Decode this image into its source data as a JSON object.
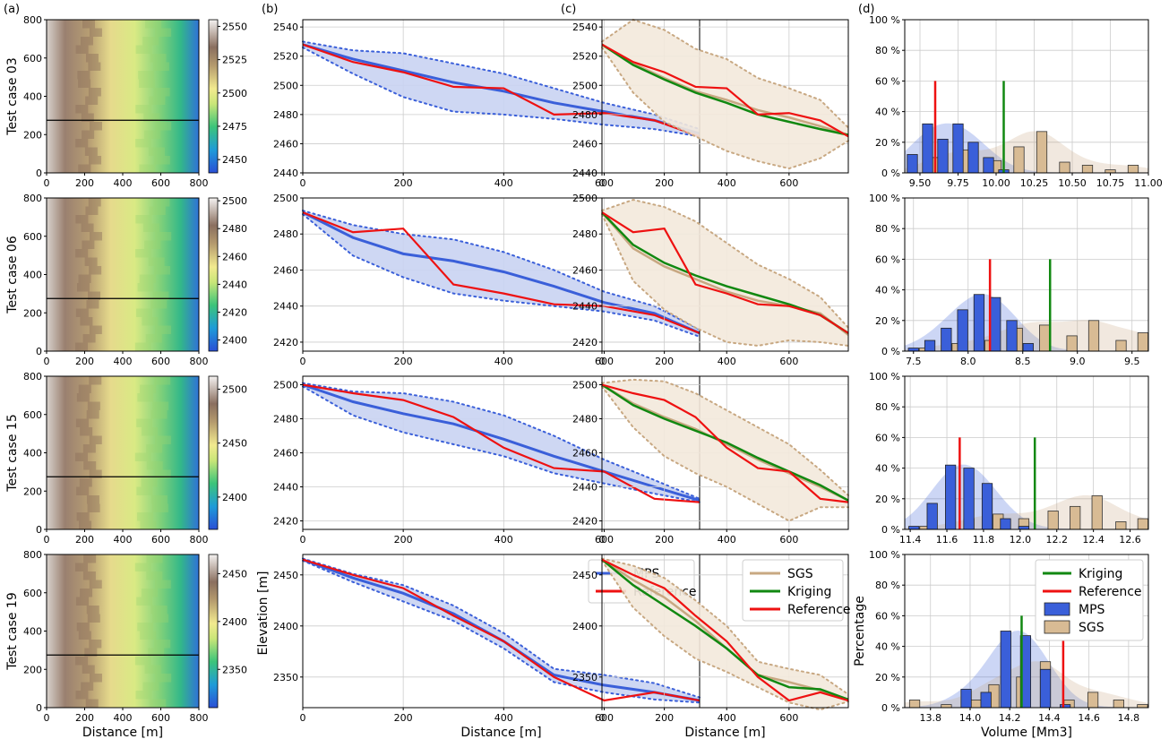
{
  "figure": {
    "panel_labels": [
      "(a)",
      "(b)",
      "(c)",
      "(d)"
    ],
    "row_labels": [
      "Test case 03",
      "Test case 06",
      "Test case 15",
      "Test case 19"
    ],
    "colors": {
      "mps": "#3a5fd9",
      "mps_fill": "#c9d3f2",
      "reference": "#ee1111",
      "kriging": "#118811",
      "sgs": "#c8a882",
      "sgs_fill": "#f3e9dc",
      "grid": "#cccccc",
      "mps_bar": "#3a5fd9",
      "sgs_bar": "#d8bb94"
    }
  },
  "chart_data": [
    {
      "id": "a",
      "type": "heatmap",
      "xlabel": "Distance [m]",
      "ylabel": "",
      "xlim": [
        0,
        800
      ],
      "ylim": [
        0,
        800
      ],
      "xticks": [
        0,
        200,
        400,
        600,
        800
      ],
      "yticks": [
        0,
        200,
        400,
        600,
        800
      ],
      "profile_line_y": 275,
      "colormap": "terrain",
      "rows": [
        {
          "row_label": "Test case 03",
          "colorbar_ticks": [
            2450,
            2475,
            2500,
            2525,
            2550
          ],
          "colorbar_range": [
            2440,
            2555
          ]
        },
        {
          "row_label": "Test case 06",
          "colorbar_ticks": [
            2400,
            2420,
            2440,
            2460,
            2480,
            2500
          ],
          "colorbar_range": [
            2392,
            2502
          ]
        },
        {
          "row_label": "Test case 15",
          "colorbar_ticks": [
            2400,
            2450,
            2500
          ],
          "colorbar_range": [
            2370,
            2512
          ]
        },
        {
          "row_label": "Test case 19",
          "colorbar_ticks": [
            2350,
            2400,
            2450
          ],
          "colorbar_range": [
            2310,
            2470
          ]
        }
      ]
    },
    {
      "id": "b",
      "type": "line",
      "xlabel": "Distance [m]",
      "ylabel": "Elevation [m]",
      "xlim": [
        0,
        790
      ],
      "xticks": [
        0,
        200,
        400,
        600
      ],
      "legend": [
        "MPS",
        "Reference"
      ],
      "legend_row": 3,
      "legend_position": "top-right",
      "rows": [
        {
          "row_label": "Test case 03",
          "ylim": [
            2440,
            2545
          ],
          "yticks": [
            2440,
            2460,
            2480,
            2500,
            2520,
            2540
          ],
          "x": [
            0,
            100,
            200,
            300,
            400,
            500,
            600,
            700,
            790
          ],
          "mps_mean": [
            2528,
            2518,
            2510,
            2502,
            2496,
            2488,
            2482,
            2476,
            2467
          ],
          "mps_upper": [
            2530,
            2524,
            2522,
            2515,
            2508,
            2498,
            2488,
            2480,
            2470
          ],
          "mps_lower": [
            2526,
            2508,
            2492,
            2482,
            2480,
            2477,
            2473,
            2470,
            2465
          ],
          "reference": [
            2528,
            2516,
            2509,
            2499,
            2498,
            2480,
            2481,
            2476,
            2465
          ]
        },
        {
          "row_label": "Test case 06",
          "ylim": [
            2415,
            2500
          ],
          "yticks": [
            2420,
            2440,
            2460,
            2480,
            2500
          ],
          "x": [
            0,
            100,
            200,
            300,
            400,
            500,
            600,
            700,
            790
          ],
          "mps_mean": [
            2492,
            2478,
            2469,
            2465,
            2459,
            2451,
            2442,
            2436,
            2425
          ],
          "mps_upper": [
            2493,
            2485,
            2480,
            2477,
            2470,
            2460,
            2448,
            2440,
            2427
          ],
          "mps_lower": [
            2491,
            2468,
            2456,
            2447,
            2443,
            2440,
            2437,
            2432,
            2423
          ],
          "reference": [
            2492,
            2481,
            2483,
            2452,
            2447,
            2441,
            2440,
            2435,
            2425
          ]
        },
        {
          "row_label": "Test case 15",
          "ylim": [
            2415,
            2505
          ],
          "yticks": [
            2420,
            2440,
            2460,
            2480,
            2500
          ],
          "x": [
            0,
            100,
            200,
            300,
            400,
            500,
            600,
            700,
            790
          ],
          "mps_mean": [
            2500,
            2490,
            2483,
            2477,
            2468,
            2458,
            2449,
            2440,
            2432
          ],
          "mps_upper": [
            2501,
            2496,
            2495,
            2490,
            2482,
            2470,
            2456,
            2444,
            2433
          ],
          "mps_lower": [
            2499,
            2482,
            2472,
            2465,
            2458,
            2448,
            2442,
            2436,
            2431
          ],
          "reference": [
            2500,
            2495,
            2491,
            2481,
            2463,
            2451,
            2449,
            2433,
            2431
          ]
        },
        {
          "row_label": "Test case 19",
          "ylim": [
            2320,
            2470
          ],
          "yticks": [
            2350,
            2400,
            2450
          ],
          "x": [
            0,
            100,
            200,
            300,
            400,
            500,
            600,
            700,
            790
          ],
          "mps_mean": [
            2465,
            2447,
            2432,
            2412,
            2385,
            2352,
            2342,
            2335,
            2327
          ],
          "mps_upper": [
            2466,
            2451,
            2440,
            2420,
            2393,
            2358,
            2352,
            2344,
            2330
          ],
          "mps_lower": [
            2464,
            2443,
            2424,
            2405,
            2378,
            2345,
            2335,
            2328,
            2325
          ],
          "reference": [
            2465,
            2450,
            2437,
            2410,
            2385,
            2350,
            2327,
            2335,
            2327
          ]
        }
      ]
    },
    {
      "id": "c",
      "type": "line",
      "xlabel": "Distance [m]",
      "ylabel": "",
      "xlim": [
        0,
        790
      ],
      "xticks": [
        0,
        200,
        400,
        600
      ],
      "legend": [
        "SGS",
        "Kriging",
        "Reference"
      ],
      "legend_row": 3,
      "legend_position": "top-right",
      "rows": [
        {
          "row_label": "Test case 03",
          "ylim": [
            2440,
            2545
          ],
          "yticks": [
            2440,
            2460,
            2480,
            2500,
            2520,
            2540
          ],
          "x": [
            0,
            100,
            200,
            300,
            400,
            500,
            600,
            700,
            790
          ],
          "sgs_mean": [
            2528,
            2515,
            2505,
            2496,
            2490,
            2483,
            2478,
            2472,
            2466
          ],
          "sgs_upper": [
            2530,
            2545,
            2538,
            2525,
            2518,
            2505,
            2498,
            2490,
            2471
          ],
          "sgs_lower": [
            2526,
            2495,
            2475,
            2465,
            2455,
            2448,
            2443,
            2450,
            2462
          ],
          "kriging": [
            2528,
            2514,
            2504,
            2495,
            2488,
            2480,
            2475,
            2470,
            2466
          ],
          "reference": [
            2528,
            2516,
            2509,
            2499,
            2498,
            2480,
            2481,
            2476,
            2465
          ]
        },
        {
          "row_label": "Test case 06",
          "ylim": [
            2415,
            2500
          ],
          "yticks": [
            2420,
            2440,
            2460,
            2480,
            2500
          ],
          "x": [
            0,
            100,
            200,
            300,
            400,
            500,
            600,
            700,
            790
          ],
          "sgs_mean": [
            2492,
            2472,
            2462,
            2455,
            2448,
            2443,
            2440,
            2436,
            2424
          ],
          "sgs_upper": [
            2493,
            2499,
            2495,
            2487,
            2475,
            2463,
            2455,
            2445,
            2428
          ],
          "sgs_lower": [
            2491,
            2454,
            2438,
            2428,
            2420,
            2418,
            2421,
            2420,
            2418
          ],
          "kriging": [
            2492,
            2474,
            2464,
            2457,
            2451,
            2446,
            2441,
            2435,
            2425
          ],
          "reference": [
            2492,
            2481,
            2483,
            2452,
            2447,
            2441,
            2440,
            2435,
            2425
          ]
        },
        {
          "row_label": "Test case 15",
          "ylim": [
            2415,
            2505
          ],
          "yticks": [
            2420,
            2440,
            2460,
            2480,
            2500
          ],
          "x": [
            0,
            100,
            200,
            300,
            400,
            500,
            600,
            700,
            790
          ],
          "sgs_mean": [
            2500,
            2489,
            2481,
            2474,
            2465,
            2456,
            2448,
            2440,
            2432
          ],
          "sgs_upper": [
            2501,
            2503,
            2502,
            2495,
            2485,
            2475,
            2465,
            2450,
            2435
          ],
          "sgs_lower": [
            2499,
            2475,
            2458,
            2448,
            2440,
            2430,
            2420,
            2428,
            2428
          ],
          "kriging": [
            2500,
            2488,
            2480,
            2473,
            2466,
            2457,
            2449,
            2441,
            2432
          ],
          "reference": [
            2500,
            2495,
            2491,
            2481,
            2463,
            2451,
            2449,
            2433,
            2431
          ]
        },
        {
          "row_label": "Test case 19",
          "ylim": [
            2320,
            2470
          ],
          "yticks": [
            2350,
            2400,
            2450
          ],
          "x": [
            0,
            100,
            200,
            300,
            400,
            500,
            600,
            700,
            790
          ],
          "sgs_mean": [
            2465,
            2445,
            2428,
            2405,
            2378,
            2352,
            2345,
            2337,
            2328
          ],
          "sgs_upper": [
            2466,
            2459,
            2447,
            2425,
            2400,
            2365,
            2358,
            2352,
            2333
          ],
          "sgs_lower": [
            2464,
            2418,
            2390,
            2368,
            2355,
            2340,
            2325,
            2318,
            2326
          ],
          "kriging": [
            2465,
            2440,
            2420,
            2400,
            2378,
            2352,
            2340,
            2338,
            2328
          ],
          "reference": [
            2465,
            2450,
            2437,
            2410,
            2385,
            2350,
            2327,
            2335,
            2327
          ]
        }
      ]
    },
    {
      "id": "d",
      "type": "bar",
      "xlabel": "Volume [Mm3]",
      "ylabel": "Percentage",
      "ylim": [
        0,
        100
      ],
      "yticks": [
        0,
        20,
        40,
        60,
        80,
        100
      ],
      "ytick_suffix": "%",
      "legend": [
        "Kriging",
        "Reference",
        "MPS",
        "SGS"
      ],
      "legend_row": 3,
      "legend_position": "top-right",
      "rows": [
        {
          "row_label": "Test case 03",
          "xlim": [
            9.4,
            11.0
          ],
          "xticks": [
            "9.50",
            "9.75",
            "10.00",
            "10.25",
            "10.50",
            "10.75",
            "11.00"
          ],
          "xtick_values": [
            9.5,
            9.75,
            10.0,
            10.25,
            10.5,
            10.75,
            11.0
          ],
          "mps_bins": [
            9.45,
            9.55,
            9.65,
            9.75,
            9.85,
            9.95,
            10.05
          ],
          "mps_values": [
            12,
            32,
            22,
            32,
            20,
            10,
            2
          ],
          "sgs_bins": [
            9.6,
            9.8,
            10.0,
            10.15,
            10.3,
            10.45,
            10.6,
            10.75,
            10.9
          ],
          "sgs_values": [
            10,
            15,
            8,
            17,
            27,
            7,
            5,
            2,
            5
          ],
          "reference": 9.6,
          "kriging": 10.05
        },
        {
          "row_label": "Test case 06",
          "xlim": [
            7.42,
            9.65
          ],
          "xticks": [
            "7.5",
            "8.0",
            "8.5",
            "9.0",
            "9.5"
          ],
          "xtick_values": [
            7.5,
            8.0,
            8.5,
            9.0,
            9.5
          ],
          "mps_bins": [
            7.5,
            7.65,
            7.8,
            7.95,
            8.1,
            8.25,
            8.4,
            8.55
          ],
          "mps_values": [
            2,
            7,
            15,
            27,
            37,
            35,
            20,
            5
          ],
          "sgs_bins": [
            7.6,
            7.9,
            8.2,
            8.45,
            8.7,
            8.95,
            9.15,
            9.4,
            9.6
          ],
          "sgs_values": [
            2,
            5,
            7,
            15,
            17,
            10,
            20,
            7,
            12
          ],
          "reference": 8.2,
          "kriging": 8.75
        },
        {
          "row_label": "Test case 15",
          "xlim": [
            11.37,
            12.7
          ],
          "xticks": [
            "11.4",
            "11.6",
            "11.8",
            "12.0",
            "12.2",
            "12.4",
            "12.6"
          ],
          "xtick_values": [
            11.4,
            11.6,
            11.8,
            12.0,
            12.2,
            12.4,
            12.6
          ],
          "mps_bins": [
            11.42,
            11.52,
            11.62,
            11.72,
            11.82,
            11.92,
            12.02
          ],
          "mps_values": [
            2,
            17,
            42,
            40,
            30,
            7,
            2
          ],
          "sgs_bins": [
            11.48,
            11.72,
            11.88,
            12.02,
            12.18,
            12.3,
            12.42,
            12.55,
            12.67
          ],
          "sgs_values": [
            2,
            7,
            10,
            7,
            12,
            15,
            22,
            5,
            7
          ],
          "reference": 11.67,
          "kriging": 12.08
        },
        {
          "row_label": "Test case 19",
          "xlim": [
            13.67,
            14.9
          ],
          "xticks": [
            "13.8",
            "14.0",
            "14.2",
            "14.4",
            "14.6",
            "14.8"
          ],
          "xtick_values": [
            13.8,
            14.0,
            14.2,
            14.4,
            14.6,
            14.8
          ],
          "mps_bins": [
            13.98,
            14.08,
            14.18,
            14.28,
            14.38,
            14.48
          ],
          "mps_values": [
            12,
            10,
            50,
            47,
            25,
            2
          ],
          "sgs_bins": [
            13.72,
            13.88,
            14.03,
            14.12,
            14.26,
            14.38,
            14.5,
            14.62,
            14.75,
            14.87
          ],
          "sgs_values": [
            5,
            2,
            5,
            15,
            20,
            30,
            5,
            10,
            5,
            2
          ],
          "reference": 14.47,
          "kriging": 14.26
        }
      ]
    }
  ]
}
